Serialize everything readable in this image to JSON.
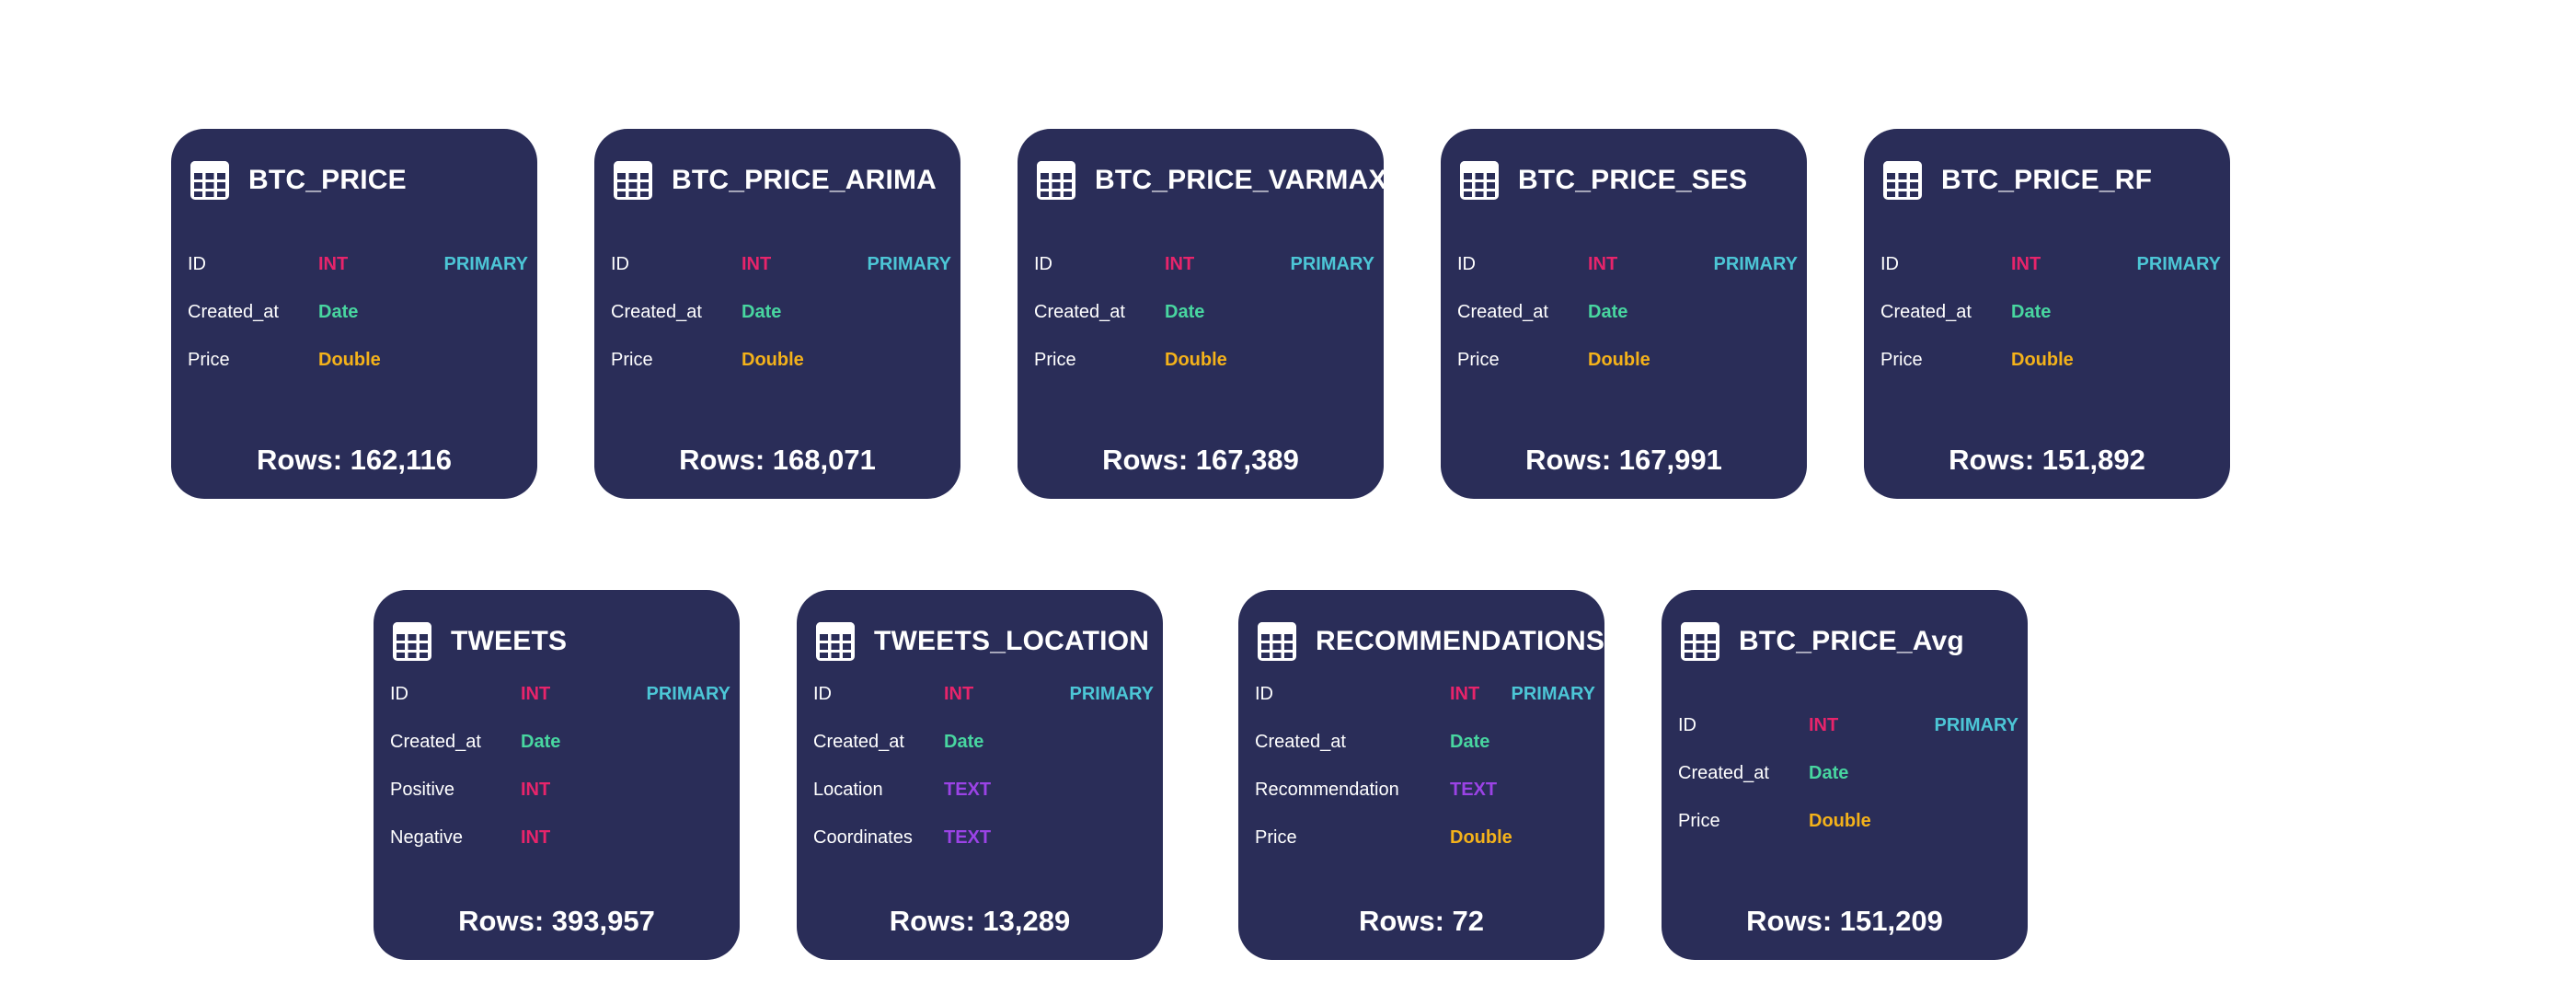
{
  "tables": [
    {
      "name": "BTC_PRICE",
      "fields": [
        {
          "name": "ID",
          "type": "INT",
          "key": "PRIMARY"
        },
        {
          "name": "Created_at",
          "type": "Date",
          "key": ""
        },
        {
          "name": "Price",
          "type": "Double",
          "key": ""
        }
      ],
      "rows": "Rows: 162,116"
    },
    {
      "name": "BTC_PRICE_ARIMA",
      "fields": [
        {
          "name": "ID",
          "type": "INT",
          "key": "PRIMARY"
        },
        {
          "name": "Created_at",
          "type": "Date",
          "key": ""
        },
        {
          "name": "Price",
          "type": "Double",
          "key": ""
        }
      ],
      "rows": "Rows: 168,071"
    },
    {
      "name": "BTC_PRICE_VARMAX",
      "fields": [
        {
          "name": "ID",
          "type": "INT",
          "key": "PRIMARY"
        },
        {
          "name": "Created_at",
          "type": "Date",
          "key": ""
        },
        {
          "name": "Price",
          "type": "Double",
          "key": ""
        }
      ],
      "rows": "Rows: 167,389"
    },
    {
      "name": "BTC_PRICE_SES",
      "fields": [
        {
          "name": "ID",
          "type": "INT",
          "key": "PRIMARY"
        },
        {
          "name": "Created_at",
          "type": "Date",
          "key": ""
        },
        {
          "name": "Price",
          "type": "Double",
          "key": ""
        }
      ],
      "rows": "Rows: 167,991"
    },
    {
      "name": "BTC_PRICE_RF",
      "fields": [
        {
          "name": "ID",
          "type": "INT",
          "key": "PRIMARY"
        },
        {
          "name": "Created_at",
          "type": "Date",
          "key": ""
        },
        {
          "name": "Price",
          "type": "Double",
          "key": ""
        }
      ],
      "rows": "Rows: 151,892"
    },
    {
      "name": "TWEETS",
      "fields": [
        {
          "name": "ID",
          "type": "INT",
          "key": "PRIMARY"
        },
        {
          "name": "Created_at",
          "type": "Date",
          "key": ""
        },
        {
          "name": "Positive",
          "type": "INT",
          "key": ""
        },
        {
          "name": "Negative",
          "type": "INT",
          "key": ""
        }
      ],
      "rows": "Rows: 393,957"
    },
    {
      "name": "TWEETS_LOCATION",
      "fields": [
        {
          "name": "ID",
          "type": "INT",
          "key": "PRIMARY"
        },
        {
          "name": "Created_at",
          "type": "Date",
          "key": ""
        },
        {
          "name": "Location",
          "type": "TEXT",
          "key": ""
        },
        {
          "name": "Coordinates",
          "type": "TEXT",
          "key": ""
        }
      ],
      "rows": "Rows: 13,289"
    },
    {
      "name": "RECOMMENDATIONS",
      "fields": [
        {
          "name": "ID",
          "type": "INT",
          "key": "PRIMARY"
        },
        {
          "name": "Created_at",
          "type": "Date",
          "key": ""
        },
        {
          "name": "Recommendation",
          "type": "TEXT",
          "key": ""
        },
        {
          "name": "Price",
          "type": "Double",
          "key": ""
        }
      ],
      "rows": "Rows: 72"
    },
    {
      "name": "BTC_PRICE_Avg",
      "fields": [
        {
          "name": "ID",
          "type": "INT",
          "key": "PRIMARY"
        },
        {
          "name": "Created_at",
          "type": "Date",
          "key": ""
        },
        {
          "name": "Price",
          "type": "Double",
          "key": ""
        }
      ],
      "rows": "Rows: 151,209"
    }
  ],
  "colors": {
    "card_background": "#2a2d58",
    "INT": "#e7246b",
    "Date": "#48d6a0",
    "Double": "#f4b21a",
    "TEXT": "#9b43e6",
    "PRIMARY": "#4cc6d6"
  },
  "icons": {
    "table": "table-grid-icon"
  }
}
